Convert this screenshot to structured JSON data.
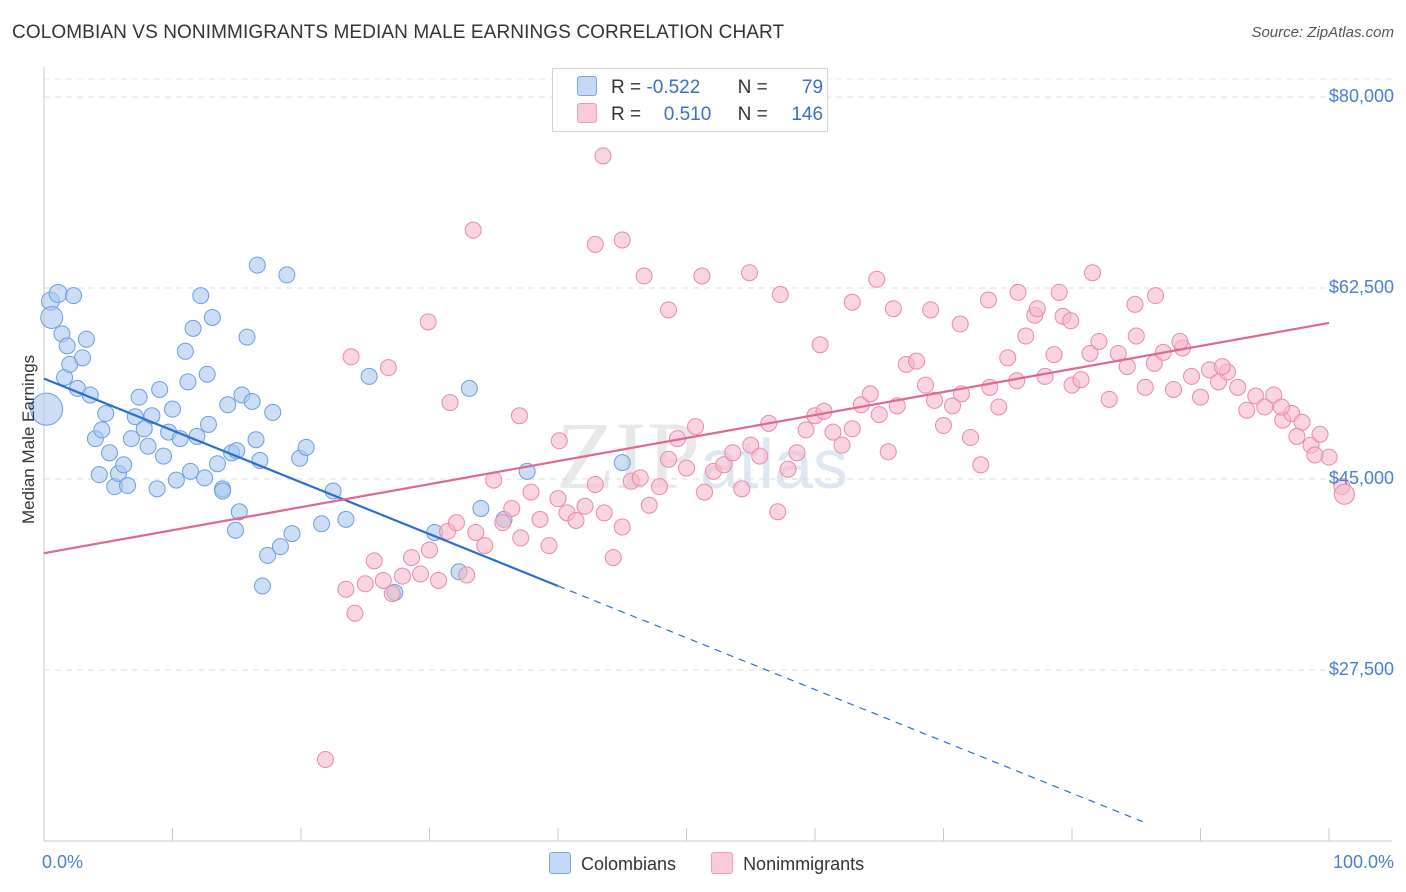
{
  "title": "COLOMBIAN VS NONIMMIGRANTS MEDIAN MALE EARNINGS CORRELATION CHART",
  "source": "Source: ZipAtlas.com",
  "watermark": {
    "part1": "ZIP",
    "part2": "atlas"
  },
  "legend": {
    "series1": {
      "r_label": "R =",
      "r_value": "-0.522",
      "n_label": "N =",
      "n_value": "79"
    },
    "series2": {
      "r_label": "R =",
      "r_value": "0.510",
      "n_label": "N =",
      "n_value": "146"
    }
  },
  "bottom_legend": {
    "series1": "Colombians",
    "series2": "Nonimmigrants"
  },
  "colors": {
    "blue_fill": "#a9c8f0",
    "blue_stroke": "#6a9ee0",
    "blue_line": "#2a6ed0",
    "pink_fill": "#f7b8cb",
    "pink_stroke": "#e88aa8",
    "pink_line": "#e06890",
    "axis_text": "#4a7fd0"
  },
  "chart_data": {
    "type": "scatter",
    "title": "COLOMBIAN VS NONIMMIGRANTS MEDIAN MALE EARNINGS CORRELATION CHART",
    "xlabel": "",
    "ylabel": "Median Male Earnings",
    "x_tick_labels": {
      "min": "0.0%",
      "max": "100.0%"
    },
    "y_tick_labels": [
      "$80,000",
      "$62,500",
      "$45,000",
      "$27,500"
    ],
    "y_ticks": [
      80000,
      62500,
      45000,
      27500
    ],
    "xlim": [
      0,
      100
    ],
    "ylim": [
      9500,
      83500
    ],
    "grid": true,
    "series": [
      {
        "name": "Colombians",
        "r": -0.522,
        "n": 79,
        "trend": {
          "x0": 0,
          "y0": 54200,
          "x1": 40,
          "y1": 35200,
          "dash_to_x": 85.5,
          "dash_to_y": 13600
        },
        "points": [
          [
            0.2,
            51400,
            16
          ],
          [
            0.5,
            61300,
            9
          ],
          [
            0.6,
            59800,
            11
          ],
          [
            1.1,
            62000,
            9
          ],
          [
            1.4,
            58300,
            8
          ],
          [
            1.6,
            54300,
            8
          ],
          [
            1.8,
            57200,
            8
          ],
          [
            2.0,
            55500,
            8
          ],
          [
            2.3,
            61800,
            8
          ],
          [
            2.6,
            53300,
            8
          ],
          [
            3.0,
            56100,
            8
          ],
          [
            3.3,
            57800,
            8
          ],
          [
            3.6,
            52700,
            8
          ],
          [
            4.0,
            48700,
            8
          ],
          [
            4.3,
            45400,
            8
          ],
          [
            4.5,
            49500,
            8
          ],
          [
            4.8,
            51000,
            8
          ],
          [
            5.1,
            47400,
            8
          ],
          [
            5.5,
            44300,
            8
          ],
          [
            5.8,
            45500,
            8
          ],
          [
            6.2,
            46300,
            8
          ],
          [
            6.5,
            44400,
            8
          ],
          [
            6.8,
            48700,
            8
          ],
          [
            7.1,
            50700,
            8
          ],
          [
            7.4,
            52500,
            8
          ],
          [
            7.8,
            49600,
            8
          ],
          [
            8.1,
            48000,
            8
          ],
          [
            8.4,
            50800,
            8
          ],
          [
            8.8,
            44100,
            8
          ],
          [
            9.0,
            53200,
            8
          ],
          [
            9.3,
            47100,
            8
          ],
          [
            9.7,
            49300,
            8
          ],
          [
            10.0,
            51400,
            8
          ],
          [
            10.3,
            44900,
            8
          ],
          [
            10.6,
            48700,
            8
          ],
          [
            11.0,
            56700,
            8
          ],
          [
            11.2,
            53900,
            8
          ],
          [
            11.6,
            58800,
            8
          ],
          [
            11.9,
            48900,
            8
          ],
          [
            12.2,
            61800,
            8
          ],
          [
            12.5,
            45100,
            8
          ],
          [
            12.8,
            50000,
            8
          ],
          [
            13.1,
            59800,
            8
          ],
          [
            13.5,
            46400,
            8
          ],
          [
            13.9,
            44100,
            8
          ],
          [
            14.3,
            51800,
            8
          ],
          [
            14.6,
            47400,
            8
          ],
          [
            15.0,
            47600,
            8
          ],
          [
            15.4,
            52700,
            8
          ],
          [
            15.8,
            58000,
            8
          ],
          [
            16.2,
            52100,
            8
          ],
          [
            16.5,
            48600,
            8
          ],
          [
            16.8,
            46700,
            8
          ],
          [
            12.7,
            54600,
            8
          ],
          [
            11.4,
            45700,
            8
          ],
          [
            14.9,
            40300,
            8
          ],
          [
            17.0,
            35200,
            8
          ],
          [
            17.4,
            38000,
            8
          ],
          [
            17.8,
            51100,
            8
          ],
          [
            18.4,
            38800,
            8
          ],
          [
            18.9,
            63700,
            8
          ],
          [
            19.3,
            40000,
            8
          ],
          [
            13.9,
            43900,
            8
          ],
          [
            15.2,
            42000,
            8
          ],
          [
            16.6,
            64600,
            8
          ],
          [
            19.9,
            46900,
            8
          ],
          [
            20.4,
            47900,
            8
          ],
          [
            21.6,
            40900,
            8
          ],
          [
            22.5,
            43900,
            8
          ],
          [
            23.5,
            41300,
            8
          ],
          [
            27.3,
            34600,
            8
          ],
          [
            34.0,
            42300,
            8
          ],
          [
            37.6,
            45700,
            8
          ],
          [
            35.8,
            41300,
            8
          ],
          [
            45.0,
            46500,
            8
          ],
          [
            25.3,
            54400,
            8
          ],
          [
            30.4,
            40100,
            8
          ],
          [
            32.3,
            36500,
            8
          ],
          [
            33.1,
            53300,
            8
          ]
        ]
      },
      {
        "name": "Nonimmigrants",
        "r": 0.51,
        "n": 146,
        "trend": {
          "x0": 0,
          "y0": 38200,
          "x1": 100,
          "y1": 59300
        },
        "points": [
          [
            23.5,
            34900,
            8
          ],
          [
            24.2,
            32700,
            8
          ],
          [
            25.0,
            35400,
            8
          ],
          [
            25.7,
            37500,
            8
          ],
          [
            26.4,
            35700,
            8
          ],
          [
            27.1,
            34500,
            8
          ],
          [
            27.9,
            36100,
            8
          ],
          [
            28.6,
            37800,
            8
          ],
          [
            29.3,
            36300,
            8
          ],
          [
            30.0,
            38500,
            8
          ],
          [
            30.7,
            35700,
            8
          ],
          [
            31.4,
            40200,
            8
          ],
          [
            32.1,
            41000,
            8
          ],
          [
            32.9,
            36200,
            8
          ],
          [
            33.6,
            40100,
            8
          ],
          [
            34.3,
            38900,
            8
          ],
          [
            35.0,
            44900,
            8
          ],
          [
            35.7,
            41000,
            8
          ],
          [
            36.4,
            42300,
            8
          ],
          [
            37.1,
            39600,
            8
          ],
          [
            37.9,
            43800,
            8
          ],
          [
            38.6,
            41300,
            8
          ],
          [
            39.3,
            38900,
            8
          ],
          [
            40.0,
            43200,
            8
          ],
          [
            40.7,
            41900,
            8
          ],
          [
            41.4,
            41200,
            8
          ],
          [
            42.1,
            42500,
            8
          ],
          [
            42.9,
            44500,
            8
          ],
          [
            43.6,
            41900,
            8
          ],
          [
            44.3,
            37800,
            8
          ],
          [
            45.0,
            40600,
            8
          ],
          [
            45.7,
            44800,
            8
          ],
          [
            46.4,
            45100,
            8
          ],
          [
            47.1,
            42600,
            8
          ],
          [
            47.9,
            44300,
            8
          ],
          [
            48.6,
            46800,
            8
          ],
          [
            49.3,
            48700,
            8
          ],
          [
            50.0,
            46000,
            8
          ],
          [
            50.7,
            49800,
            8
          ],
          [
            51.4,
            43800,
            8
          ],
          [
            52.1,
            45700,
            8
          ],
          [
            52.9,
            46300,
            8
          ],
          [
            53.6,
            47400,
            8
          ],
          [
            54.3,
            44100,
            8
          ],
          [
            55.0,
            48100,
            8
          ],
          [
            55.7,
            47100,
            8
          ],
          [
            56.4,
            50100,
            8
          ],
          [
            57.1,
            42000,
            8
          ],
          [
            57.9,
            45900,
            8
          ],
          [
            58.6,
            47400,
            8
          ],
          [
            59.3,
            49500,
            8
          ],
          [
            60.0,
            50800,
            8
          ],
          [
            60.7,
            51200,
            8
          ],
          [
            61.4,
            49300,
            8
          ],
          [
            62.1,
            48100,
            8
          ],
          [
            62.9,
            49600,
            8
          ],
          [
            63.6,
            51800,
            8
          ],
          [
            64.3,
            52800,
            8
          ],
          [
            65.0,
            50900,
            8
          ],
          [
            65.7,
            47500,
            8
          ],
          [
            66.4,
            51700,
            8
          ],
          [
            67.1,
            55500,
            8
          ],
          [
            67.9,
            55800,
            8
          ],
          [
            68.6,
            53600,
            8
          ],
          [
            69.3,
            52200,
            8
          ],
          [
            70.0,
            49900,
            8
          ],
          [
            70.7,
            51700,
            8
          ],
          [
            71.4,
            52800,
            8
          ],
          [
            72.1,
            48800,
            8
          ],
          [
            72.9,
            46300,
            8
          ],
          [
            73.6,
            53400,
            8
          ],
          [
            74.3,
            51600,
            8
          ],
          [
            75.0,
            56100,
            8
          ],
          [
            75.7,
            54000,
            8
          ],
          [
            76.4,
            58100,
            8
          ],
          [
            77.1,
            60000,
            8
          ],
          [
            77.9,
            54400,
            8
          ],
          [
            78.6,
            56400,
            8
          ],
          [
            79.3,
            59900,
            8
          ],
          [
            80.0,
            53600,
            8
          ],
          [
            80.7,
            54100,
            8
          ],
          [
            81.4,
            56500,
            8
          ],
          [
            82.1,
            57600,
            8
          ],
          [
            82.9,
            52300,
            8
          ],
          [
            83.6,
            56500,
            8
          ],
          [
            84.3,
            55300,
            8
          ],
          [
            85.0,
            58100,
            8
          ],
          [
            85.7,
            53400,
            8
          ],
          [
            86.4,
            55600,
            8
          ],
          [
            87.1,
            56600,
            8
          ],
          [
            87.9,
            53200,
            8
          ],
          [
            88.6,
            57000,
            8
          ],
          [
            89.3,
            54400,
            8
          ],
          [
            90.0,
            52500,
            8
          ],
          [
            90.7,
            55000,
            8
          ],
          [
            91.4,
            53900,
            8
          ],
          [
            92.1,
            54800,
            8
          ],
          [
            92.9,
            53400,
            8
          ],
          [
            93.6,
            51300,
            8
          ],
          [
            94.3,
            52600,
            8
          ],
          [
            95.0,
            51600,
            8
          ],
          [
            95.7,
            52700,
            8
          ],
          [
            96.4,
            50400,
            8
          ],
          [
            97.1,
            51000,
            8
          ],
          [
            97.9,
            50200,
            8
          ],
          [
            98.6,
            48100,
            8
          ],
          [
            99.3,
            49100,
            8
          ],
          [
            100.0,
            47000,
            8
          ],
          [
            101.0,
            44300,
            8
          ],
          [
            101.2,
            43600,
            10
          ],
          [
            97.5,
            48900,
            8
          ],
          [
            98.9,
            47200,
            8
          ],
          [
            96.3,
            51600,
            8
          ],
          [
            91.7,
            55300,
            8
          ],
          [
            88.4,
            57600,
            8
          ],
          [
            86.5,
            61800,
            8
          ],
          [
            84.9,
            61000,
            8
          ],
          [
            81.6,
            63900,
            8
          ],
          [
            79.9,
            59500,
            8
          ],
          [
            79.0,
            62100,
            8
          ],
          [
            77.3,
            60600,
            8
          ],
          [
            75.8,
            62100,
            8
          ],
          [
            73.5,
            61400,
            8
          ],
          [
            71.3,
            59200,
            8
          ],
          [
            69.0,
            60500,
            8
          ],
          [
            66.1,
            60600,
            8
          ],
          [
            64.8,
            63300,
            8
          ],
          [
            62.9,
            61200,
            8
          ],
          [
            60.4,
            57300,
            8
          ],
          [
            57.3,
            61900,
            8
          ],
          [
            54.9,
            63900,
            8
          ],
          [
            51.2,
            63600,
            8
          ],
          [
            48.6,
            60500,
            8
          ],
          [
            46.7,
            63600,
            8
          ],
          [
            45.0,
            66900,
            8
          ],
          [
            42.9,
            66500,
            8
          ],
          [
            37.0,
            50800,
            8
          ],
          [
            33.4,
            67800,
            8
          ],
          [
            40.1,
            48500,
            8
          ],
          [
            29.9,
            59400,
            8
          ],
          [
            26.8,
            55200,
            8
          ],
          [
            23.9,
            56200,
            8
          ],
          [
            21.9,
            19300,
            8
          ],
          [
            43.5,
            74600,
            8
          ],
          [
            31.6,
            52000,
            8
          ]
        ]
      }
    ]
  }
}
